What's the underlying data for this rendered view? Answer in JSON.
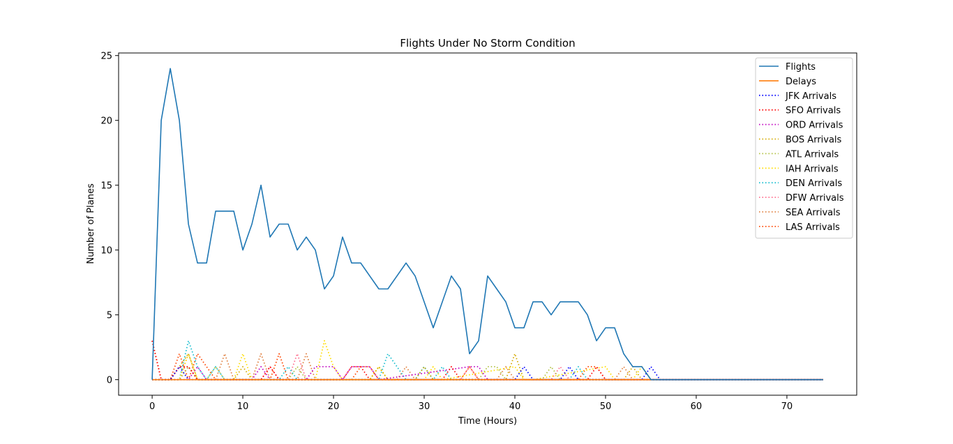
{
  "chart_data": {
    "type": "line",
    "title": "Flights Under No Storm Condition",
    "xlabel": "Time (Hours)",
    "ylabel": "Number of Planes",
    "xlim": [
      -3.7,
      77.7
    ],
    "ylim": [
      -1.2,
      25.2
    ],
    "xticks": [
      0,
      10,
      20,
      30,
      40,
      50,
      60,
      70
    ],
    "yticks": [
      0,
      5,
      10,
      15,
      20,
      25
    ],
    "grid": false,
    "legend_position": "top-right",
    "series": [
      {
        "name": "Flights",
        "color": "#1f77b4",
        "style": "solid",
        "x": [
          0,
          1,
          2,
          3,
          4,
          5,
          6,
          7,
          8,
          9,
          10,
          11,
          12,
          13,
          14,
          15,
          16,
          17,
          18,
          19,
          20,
          21,
          22,
          23,
          24,
          25,
          26,
          27,
          28,
          29,
          30,
          31,
          32,
          33,
          34,
          35,
          36,
          37,
          38,
          39,
          40,
          41,
          42,
          43,
          44,
          45,
          46,
          47,
          48,
          49,
          50,
          51,
          52,
          53,
          54,
          55,
          56,
          74
        ],
        "y": [
          0,
          20,
          24,
          20,
          12,
          9,
          9,
          13,
          13,
          13,
          10,
          12,
          15,
          11,
          12,
          12,
          10,
          11,
          10,
          7,
          8,
          11,
          9,
          9,
          8,
          7,
          7,
          8,
          9,
          8,
          6,
          4,
          6,
          8,
          7,
          2,
          3,
          8,
          7,
          6,
          4,
          4,
          6,
          6,
          5,
          6,
          6,
          6,
          5,
          3,
          4,
          4,
          2,
          1,
          1,
          0,
          0,
          0
        ]
      },
      {
        "name": "Delays",
        "color": "#ff7f0e",
        "style": "solid",
        "x": [
          0,
          74
        ],
        "y": [
          0,
          0
        ]
      },
      {
        "name": "JFK Arrivals",
        "color": "#0000ff",
        "style": "dotted",
        "x": [
          0,
          2,
          3,
          4,
          5,
          40,
          41,
          42,
          45,
          46,
          47,
          54,
          55,
          56,
          74
        ],
        "y": [
          0,
          0,
          1,
          0,
          0,
          0,
          1,
          0,
          0,
          1,
          0,
          0,
          1,
          0,
          0
        ]
      },
      {
        "name": "SFO Arrivals",
        "color": "#ff0000",
        "style": "dotted",
        "x": [
          0,
          1,
          2,
          3,
          4,
          5,
          6,
          7,
          12,
          13,
          14,
          21,
          22,
          23,
          24,
          25,
          32,
          33,
          34,
          48,
          49,
          50,
          74
        ],
        "y": [
          3,
          0,
          0,
          1,
          1,
          0,
          0,
          0,
          0,
          1,
          0,
          0,
          1,
          1,
          0,
          0,
          0,
          1,
          0,
          0,
          1,
          0,
          0
        ]
      },
      {
        "name": "ORD Arrivals",
        "color": "#c000c0",
        "style": "dotted",
        "x": [
          0,
          4,
          5,
          6,
          7,
          11,
          12,
          13,
          17,
          18,
          19,
          20,
          21,
          22,
          23,
          24,
          25,
          35,
          36,
          37,
          74
        ],
        "y": [
          0,
          0,
          1,
          0,
          0,
          0,
          1,
          0,
          0,
          1,
          1,
          1,
          0,
          1,
          1,
          1,
          0,
          1,
          1,
          0,
          0
        ]
      },
      {
        "name": "BOS Arrivals",
        "color": "#d4aa00",
        "style": "dotted",
        "x": [
          0,
          2,
          3,
          4,
          5,
          9,
          10,
          11,
          24,
          25,
          26,
          29,
          30,
          31,
          39,
          40,
          41,
          52,
          53,
          54,
          74
        ],
        "y": [
          0,
          0,
          1,
          2,
          0,
          0,
          1,
          0,
          0,
          1,
          0,
          0,
          1,
          0,
          0,
          2,
          0,
          0,
          1,
          0,
          0
        ]
      },
      {
        "name": "ATL Arrivals",
        "color": "#b0c040",
        "style": "dotted",
        "x": [
          0,
          3,
          4,
          5,
          6,
          7,
          8,
          9,
          15,
          16,
          17,
          36,
          37,
          38,
          39,
          40,
          43,
          44,
          45,
          74
        ],
        "y": [
          0,
          0,
          1,
          0,
          0,
          1,
          0,
          0,
          0,
          1,
          0,
          0,
          1,
          1,
          0,
          0,
          0,
          1,
          0,
          0
        ]
      },
      {
        "name": "IAH Arrivals",
        "color": "#ffdd00",
        "style": "dotted",
        "x": [
          0,
          3,
          4,
          5,
          9,
          10,
          11,
          18,
          19,
          20,
          21,
          24,
          25,
          26,
          30,
          31,
          32,
          40,
          41,
          42,
          50,
          51,
          53,
          54,
          55,
          74
        ],
        "y": [
          0,
          0,
          2,
          0,
          0,
          2,
          0,
          0,
          3,
          1,
          0,
          0,
          1,
          0,
          0,
          1,
          0,
          1,
          0,
          0,
          1,
          0,
          0,
          1,
          0,
          0
        ]
      },
      {
        "name": "DEN Arrivals",
        "color": "#17becf",
        "style": "dotted",
        "x": [
          0,
          3,
          4,
          5,
          6,
          7,
          8,
          14,
          15,
          16,
          25,
          26,
          27,
          28,
          29,
          30,
          31,
          32,
          33,
          46,
          47,
          48,
          74
        ],
        "y": [
          0,
          0,
          3,
          1,
          0,
          1,
          0,
          0,
          1,
          0,
          0,
          2,
          1,
          0,
          0,
          1,
          0,
          1,
          0,
          0,
          1,
          0,
          0
        ]
      },
      {
        "name": "DFW Arrivals",
        "color": "#ff6b8b",
        "style": "dotted",
        "x": [
          0,
          3,
          4,
          5,
          6,
          12,
          13,
          14,
          15,
          16,
          17,
          34,
          35,
          36,
          44,
          45,
          46,
          74
        ],
        "y": [
          0,
          0,
          1,
          0,
          0,
          0,
          1,
          0,
          0,
          2,
          0,
          0,
          1,
          0,
          0,
          1,
          0,
          0
        ]
      },
      {
        "name": "SEA Arrivals",
        "color": "#e08040",
        "style": "dotted",
        "x": [
          0,
          3,
          4,
          5,
          7,
          8,
          9,
          11,
          12,
          13,
          16,
          17,
          18,
          27,
          28,
          29,
          38,
          39,
          40,
          51,
          52,
          53,
          74
        ],
        "y": [
          0,
          0,
          2,
          0,
          0,
          2,
          0,
          0,
          2,
          0,
          0,
          2,
          0,
          0,
          1,
          0,
          0,
          1,
          0,
          0,
          1,
          0,
          0
        ]
      },
      {
        "name": "LAS Arrivals",
        "color": "#ff4500",
        "style": "dotted",
        "x": [
          0,
          1,
          2,
          3,
          4,
          5,
          6,
          7,
          13,
          14,
          15,
          22,
          23,
          24,
          25,
          34,
          35,
          36,
          47,
          48,
          49,
          50,
          74
        ],
        "y": [
          3,
          0,
          0,
          2,
          0,
          2,
          1,
          0,
          0,
          2,
          0,
          0,
          1,
          1,
          0,
          0,
          1,
          0,
          0,
          1,
          1,
          0,
          0
        ]
      }
    ]
  }
}
